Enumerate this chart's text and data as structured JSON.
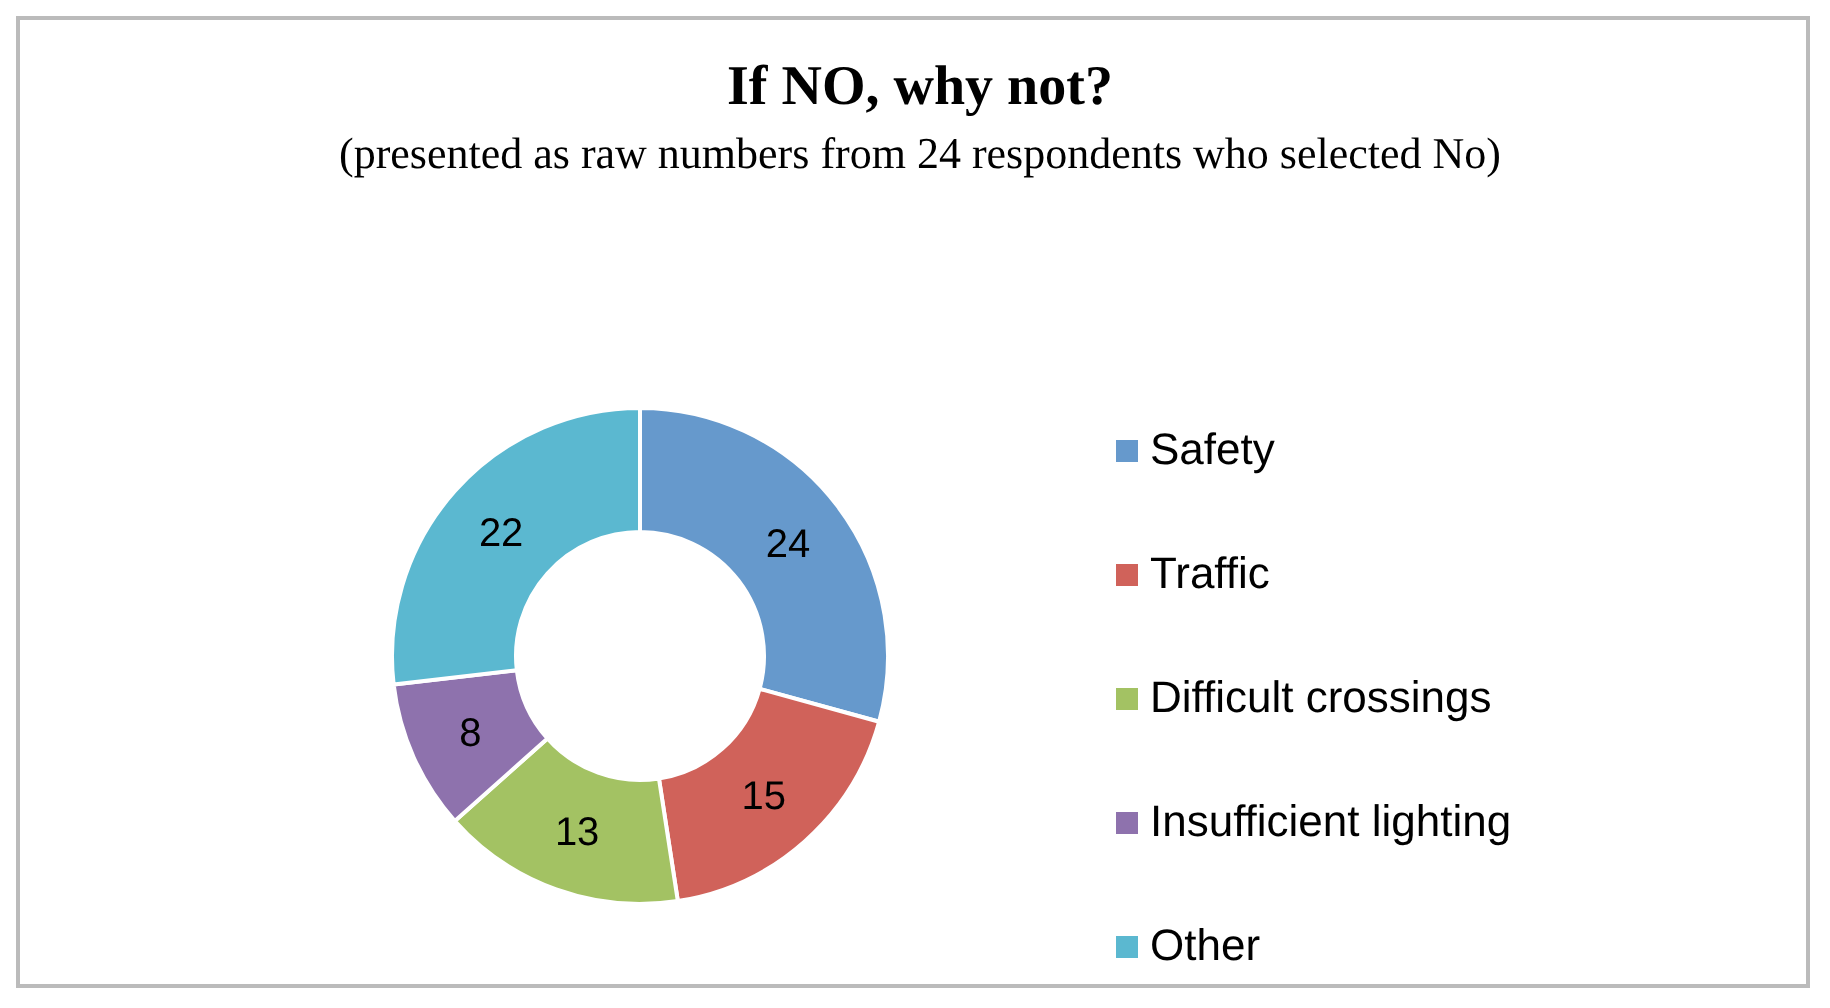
{
  "chart_data": {
    "type": "donut",
    "title": "If NO, why not?",
    "subtitle": "(presented as raw numbers from 24 respondents who selected No)",
    "categories": [
      "Safety",
      "Traffic",
      "Difficult crossings",
      "Insufficient lighting",
      "Other"
    ],
    "values": [
      24,
      15,
      13,
      8,
      22
    ],
    "colors": [
      "#6699cc",
      "#d0625a",
      "#a3c263",
      "#8e72ad",
      "#5bb8d0"
    ],
    "data_labels": true,
    "legend": "right"
  }
}
